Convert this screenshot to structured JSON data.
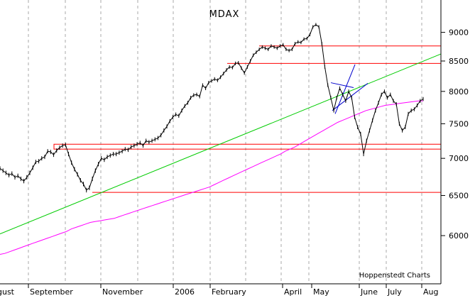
{
  "chart_data": {
    "type": "line",
    "title": "MDAX",
    "credit": "Hoppenstedt Charts",
    "y_scale": "log",
    "ylim": [
      5450,
      9600
    ],
    "y_ticks": [
      9000,
      8500,
      8000,
      7500,
      7000,
      6500,
      6000
    ],
    "x_ticks": [
      "gust",
      "September",
      "November",
      "2006",
      "February",
      "April",
      "May",
      "June",
      "July",
      "Aug"
    ],
    "grid": "vertical dashed",
    "colors": {
      "price": "#000000",
      "moving_average": "#ff00ff",
      "trendline": "#00cc00",
      "levels": "#ff0000",
      "triangle": "#0000cc"
    },
    "series": [
      {
        "key": "price",
        "values": [
          6860,
          6830,
          6800,
          6770,
          6790,
          6740,
          6760,
          6720,
          6690,
          6740,
          6800,
          6870,
          6950,
          6960,
          7000,
          7020,
          7100,
          7090,
          7050,
          7110,
          7150,
          7180,
          7190,
          7060,
          6940,
          6850,
          6780,
          6700,
          6650,
          6570,
          6600,
          6720,
          6830,
          6920,
          7000,
          6980,
          7020,
          7040,
          7060,
          7060,
          7080,
          7100,
          7130,
          7120,
          7160,
          7180,
          7200,
          7220,
          7180,
          7250,
          7230,
          7250,
          7270,
          7290,
          7330,
          7400,
          7460,
          7540,
          7600,
          7640,
          7620,
          7700,
          7770,
          7820,
          7900,
          7940,
          7950,
          7920,
          8100,
          8050,
          8140,
          8170,
          8200,
          8180,
          8230,
          8290,
          8350,
          8400,
          8390,
          8460,
          8470,
          8380,
          8300,
          8400,
          8500,
          8600,
          8650,
          8700,
          8740,
          8720,
          8700,
          8760,
          8740,
          8720,
          8760,
          8780,
          8700,
          8680,
          8700,
          8800,
          8830,
          8820,
          8880,
          8890,
          8960,
          9100,
          9140,
          9100,
          8800,
          8400,
          8100,
          7900,
          7700,
          7900,
          8050,
          7950,
          7850,
          8000,
          7900,
          7600,
          7450,
          7350,
          7060,
          7250,
          7400,
          7550,
          7700,
          7820,
          7950,
          8000,
          7900,
          7950,
          7850,
          7800,
          7500,
          7400,
          7450,
          7650,
          7700,
          7720,
          7780,
          7850,
          7880
        ],
        "high": [
          6890,
          6860,
          6830,
          6800,
          6820,
          6770,
          6790,
          6750,
          6720,
          6770,
          6830,
          6900,
          6980,
          6990,
          7030,
          7050,
          7130,
          7120,
          7080,
          7140,
          7180,
          7210,
          7220,
          7090,
          6970,
          6880,
          6810,
          6730,
          6680,
          6600,
          6630,
          6750,
          6860,
          6950,
          7030,
          7010,
          7050,
          7070,
          7090,
          7090,
          7110,
          7130,
          7160,
          7150,
          7190,
          7210,
          7230,
          7250,
          7210,
          7280,
          7260,
          7280,
          7300,
          7320,
          7360,
          7430,
          7490,
          7570,
          7630,
          7670,
          7650,
          7730,
          7800,
          7850,
          7930,
          7970,
          7980,
          7950,
          8130,
          8080,
          8170,
          8200,
          8230,
          8210,
          8260,
          8320,
          8380,
          8430,
          8420,
          8490,
          8500,
          8410,
          8330,
          8430,
          8530,
          8630,
          8680,
          8730,
          8770,
          8750,
          8730,
          8790,
          8770,
          8750,
          8790,
          8810,
          8730,
          8710,
          8730,
          8830,
          8860,
          8850,
          8910,
          8920,
          8990,
          9130,
          9170,
          9130,
          8830,
          8430,
          8130,
          7930,
          7730,
          7930,
          8080,
          7980,
          7880,
          8030,
          7930,
          7630,
          7480,
          7380,
          7090,
          7280,
          7430,
          7580,
          7730,
          7850,
          7980,
          8030,
          7930,
          7980,
          7880,
          7830,
          7530,
          7430,
          7480,
          7680,
          7730,
          7750,
          7810,
          7880,
          7910
        ],
        "low": [
          6830,
          6800,
          6770,
          6740,
          6760,
          6710,
          6730,
          6690,
          6660,
          6710,
          6770,
          6840,
          6920,
          6930,
          6970,
          6990,
          7070,
          7060,
          7020,
          7080,
          7120,
          7150,
          7160,
          7030,
          6910,
          6820,
          6750,
          6670,
          6620,
          6540,
          6570,
          6690,
          6800,
          6890,
          6970,
          6950,
          6990,
          7010,
          7030,
          7030,
          7050,
          7070,
          7100,
          7090,
          7130,
          7150,
          7170,
          7190,
          7150,
          7220,
          7200,
          7220,
          7240,
          7260,
          7300,
          7370,
          7430,
          7510,
          7570,
          7610,
          7590,
          7670,
          7740,
          7790,
          7870,
          7910,
          7920,
          7890,
          8070,
          8020,
          8110,
          8140,
          8170,
          8150,
          8200,
          8260,
          8320,
          8370,
          8360,
          8430,
          8440,
          8350,
          8270,
          8370,
          8470,
          8570,
          8620,
          8670,
          8710,
          8690,
          8670,
          8730,
          8710,
          8690,
          8730,
          8750,
          8670,
          8650,
          8670,
          8770,
          8800,
          8790,
          8850,
          8860,
          8930,
          9070,
          9110,
          9070,
          8770,
          8370,
          8070,
          7870,
          7670,
          7870,
          8020,
          7920,
          7820,
          7970,
          7870,
          7570,
          7420,
          7320,
          7030,
          7220,
          7370,
          7520,
          7670,
          7790,
          7920,
          7970,
          7870,
          7920,
          7820,
          7770,
          7470,
          7370,
          7420,
          7620,
          7670,
          7690,
          7750,
          7820,
          7850
        ]
      },
      {
        "key": "moving_average",
        "values": [
          5780,
          5790,
          5810,
          5830,
          5850,
          5870,
          5890,
          5910,
          5930,
          5950,
          5970,
          5990,
          6010,
          6030,
          6050,
          6080,
          6100,
          6120,
          6140,
          6160,
          6170,
          6180,
          6190,
          6200,
          6210,
          6230,
          6250,
          6270,
          6290,
          6310,
          6330,
          6350,
          6370,
          6390,
          6410,
          6430,
          6450,
          6470,
          6490,
          6510,
          6530,
          6550,
          6570,
          6590,
          6610,
          6640,
          6670,
          6700,
          6730,
          6760,
          6790,
          6820,
          6850,
          6880,
          6910,
          6940,
          6970,
          7000,
          7030,
          7060,
          7100,
          7130,
          7160,
          7200,
          7240,
          7280,
          7320,
          7360,
          7400,
          7440,
          7480,
          7520,
          7550,
          7580,
          7610,
          7640,
          7670,
          7700,
          7720,
          7740,
          7760,
          7780,
          7790,
          7800,
          7810,
          7820,
          7830,
          7840,
          7850,
          7850
        ]
      }
    ],
    "levels": [
      8760,
      8460,
      7200,
      7130,
      6540
    ],
    "trendline": [
      6020,
      8620
    ],
    "triangle": [
      [
        7650,
        8440
      ],
      [
        7700,
        8130
      ]
    ]
  }
}
